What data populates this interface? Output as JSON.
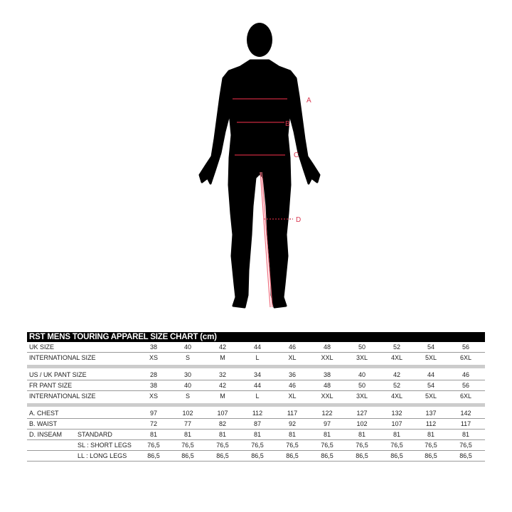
{
  "figure": {
    "labels": [
      "A",
      "B",
      "C",
      "D"
    ],
    "measure_color": "#d9364f"
  },
  "table": {
    "title": "RST MENS TOURING APPAREL SIZE CHART (cm)",
    "groups": [
      [
        {
          "label": "UK SIZE",
          "values": [
            "38",
            "40",
            "42",
            "44",
            "46",
            "48",
            "50",
            "52",
            "54",
            "56"
          ]
        },
        {
          "label": "INTERNATIONAL SIZE",
          "values": [
            "XS",
            "S",
            "M",
            "L",
            "XL",
            "XXL",
            "3XL",
            "4XL",
            "5XL",
            "6XL"
          ]
        }
      ],
      [
        {
          "label": "US / UK  PANT SIZE",
          "values": [
            "28",
            "30",
            "32",
            "34",
            "36",
            "38",
            "40",
            "42",
            "44",
            "46"
          ]
        },
        {
          "label": "FR PANT SIZE",
          "values": [
            "38",
            "40",
            "42",
            "44",
            "46",
            "48",
            "50",
            "52",
            "54",
            "56"
          ]
        },
        {
          "label": "INTERNATIONAL SIZE",
          "values": [
            "XS",
            "S",
            "M",
            "L",
            "XL",
            "XXL",
            "3XL",
            "4XL",
            "5XL",
            "6XL"
          ]
        }
      ],
      [
        {
          "label": "A. CHEST",
          "values": [
            "97",
            "102",
            "107",
            "112",
            "117",
            "122",
            "127",
            "132",
            "137",
            "142"
          ]
        },
        {
          "label": "B. WAIST",
          "values": [
            "72",
            "77",
            "82",
            "87",
            "92",
            "97",
            "102",
            "107",
            "112",
            "117"
          ]
        },
        {
          "label": "D. INSEAM",
          "sub": "STANDARD",
          "values": [
            "81",
            "81",
            "81",
            "81",
            "81",
            "81",
            "81",
            "81",
            "81",
            "81"
          ]
        },
        {
          "label": "",
          "sub": "SL : SHORT LEGS",
          "values": [
            "76,5",
            "76,5",
            "76,5",
            "76,5",
            "76,5",
            "76,5",
            "76,5",
            "76,5",
            "76,5",
            "76,5"
          ]
        },
        {
          "label": "",
          "sub": "LL : LONG LEGS",
          "values": [
            "86,5",
            "86,5",
            "86,5",
            "86,5",
            "86,5",
            "86,5",
            "86,5",
            "86,5",
            "86,5",
            "86,5"
          ]
        }
      ]
    ]
  }
}
